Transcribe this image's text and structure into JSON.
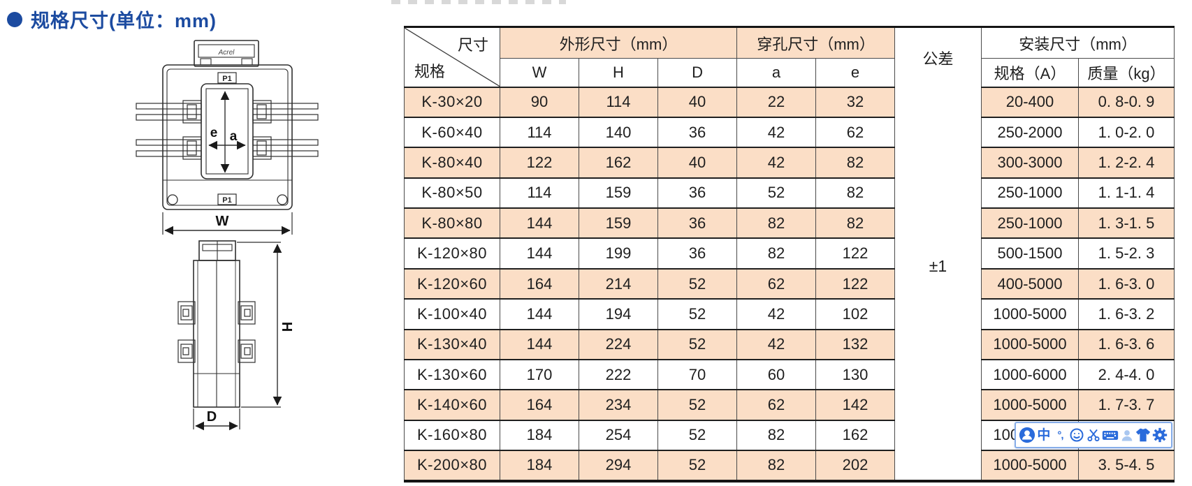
{
  "page": {
    "title": "规格尺寸(单位：mm)"
  },
  "diagram": {
    "brand": "Acrel",
    "labels": {
      "p1_top": "P1",
      "p1_bottom": "P1",
      "width": "W",
      "window_height": "e",
      "window_width": "a",
      "height": "H",
      "depth": "D"
    }
  },
  "table": {
    "header": {
      "corner_top": "尺寸",
      "corner_bottom": "规格",
      "group_outline": "外形尺寸（mm）",
      "group_hole": "穿孔尺寸（mm）",
      "tolerance": "公差",
      "group_install": "安装尺寸（mm）",
      "sub": [
        "W",
        "H",
        "D",
        "a",
        "e"
      ],
      "install_sub": [
        "规格（A）",
        "质量（kg）"
      ]
    },
    "tolerance_value": "±1",
    "rows": [
      {
        "spec": "K-30×20",
        "w": "90",
        "h": "114",
        "d": "40",
        "a": "22",
        "e": "32",
        "amp": "20-400",
        "kg": "0. 8-0. 9"
      },
      {
        "spec": "K-60×40",
        "w": "114",
        "h": "140",
        "d": "36",
        "a": "42",
        "e": "62",
        "amp": "250-2000",
        "kg": "1. 0-2. 0"
      },
      {
        "spec": "K-80×40",
        "w": "122",
        "h": "162",
        "d": "40",
        "a": "42",
        "e": "82",
        "amp": "300-3000",
        "kg": "1. 2-2. 4"
      },
      {
        "spec": "K-80×50",
        "w": "114",
        "h": "159",
        "d": "36",
        "a": "52",
        "e": "82",
        "amp": "250-1000",
        "kg": "1. 1-1. 4"
      },
      {
        "spec": "K-80×80",
        "w": "144",
        "h": "159",
        "d": "36",
        "a": "82",
        "e": "82",
        "amp": "250-1000",
        "kg": "1. 3-1. 5"
      },
      {
        "spec": "K-120×80",
        "w": "144",
        "h": "199",
        "d": "36",
        "a": "82",
        "e": "122",
        "amp": "500-1500",
        "kg": "1. 5-2. 3"
      },
      {
        "spec": "K-120×60",
        "w": "164",
        "h": "214",
        "d": "52",
        "a": "62",
        "e": "122",
        "amp": "400-5000",
        "kg": "1. 6-3. 0"
      },
      {
        "spec": "K-100×40",
        "w": "144",
        "h": "194",
        "d": "52",
        "a": "42",
        "e": "102",
        "amp": "1000-5000",
        "kg": "1. 6-3. 2"
      },
      {
        "spec": "K-130×40",
        "w": "144",
        "h": "224",
        "d": "52",
        "a": "42",
        "e": "132",
        "amp": "1000-5000",
        "kg": "1. 6-3. 6"
      },
      {
        "spec": "K-130×60",
        "w": "170",
        "h": "222",
        "d": "70",
        "a": "60",
        "e": "130",
        "amp": "1000-6000",
        "kg": "2. 4-4. 0"
      },
      {
        "spec": "K-140×60",
        "w": "164",
        "h": "234",
        "d": "52",
        "a": "62",
        "e": "142",
        "amp": "1000-5000",
        "kg": "1. 7-3. 7"
      },
      {
        "spec": "K-160×80",
        "w": "184",
        "h": "254",
        "d": "52",
        "a": "82",
        "e": "162",
        "amp": "1000-5000",
        "kg": ""
      },
      {
        "spec": "K-200×80",
        "w": "184",
        "h": "294",
        "d": "52",
        "a": "82",
        "e": "202",
        "amp": "1000-5000",
        "kg": "3. 5-4. 5"
      }
    ]
  },
  "ime_toolbar": {
    "mode_label": "中",
    "punct_label": "°,",
    "icons": [
      "ime-logo-icon",
      "chinese-mode-icon",
      "punctuation-mode-icon",
      "emoji-icon",
      "screenshot-scissors-icon",
      "virtual-keyboard-icon",
      "account-icon",
      "skin-theme-icon",
      "settings-gear-icon"
    ],
    "accent_color": "#2a6bdb",
    "muted_color": "#a9c7f0",
    "border_color": "#86ade9"
  }
}
